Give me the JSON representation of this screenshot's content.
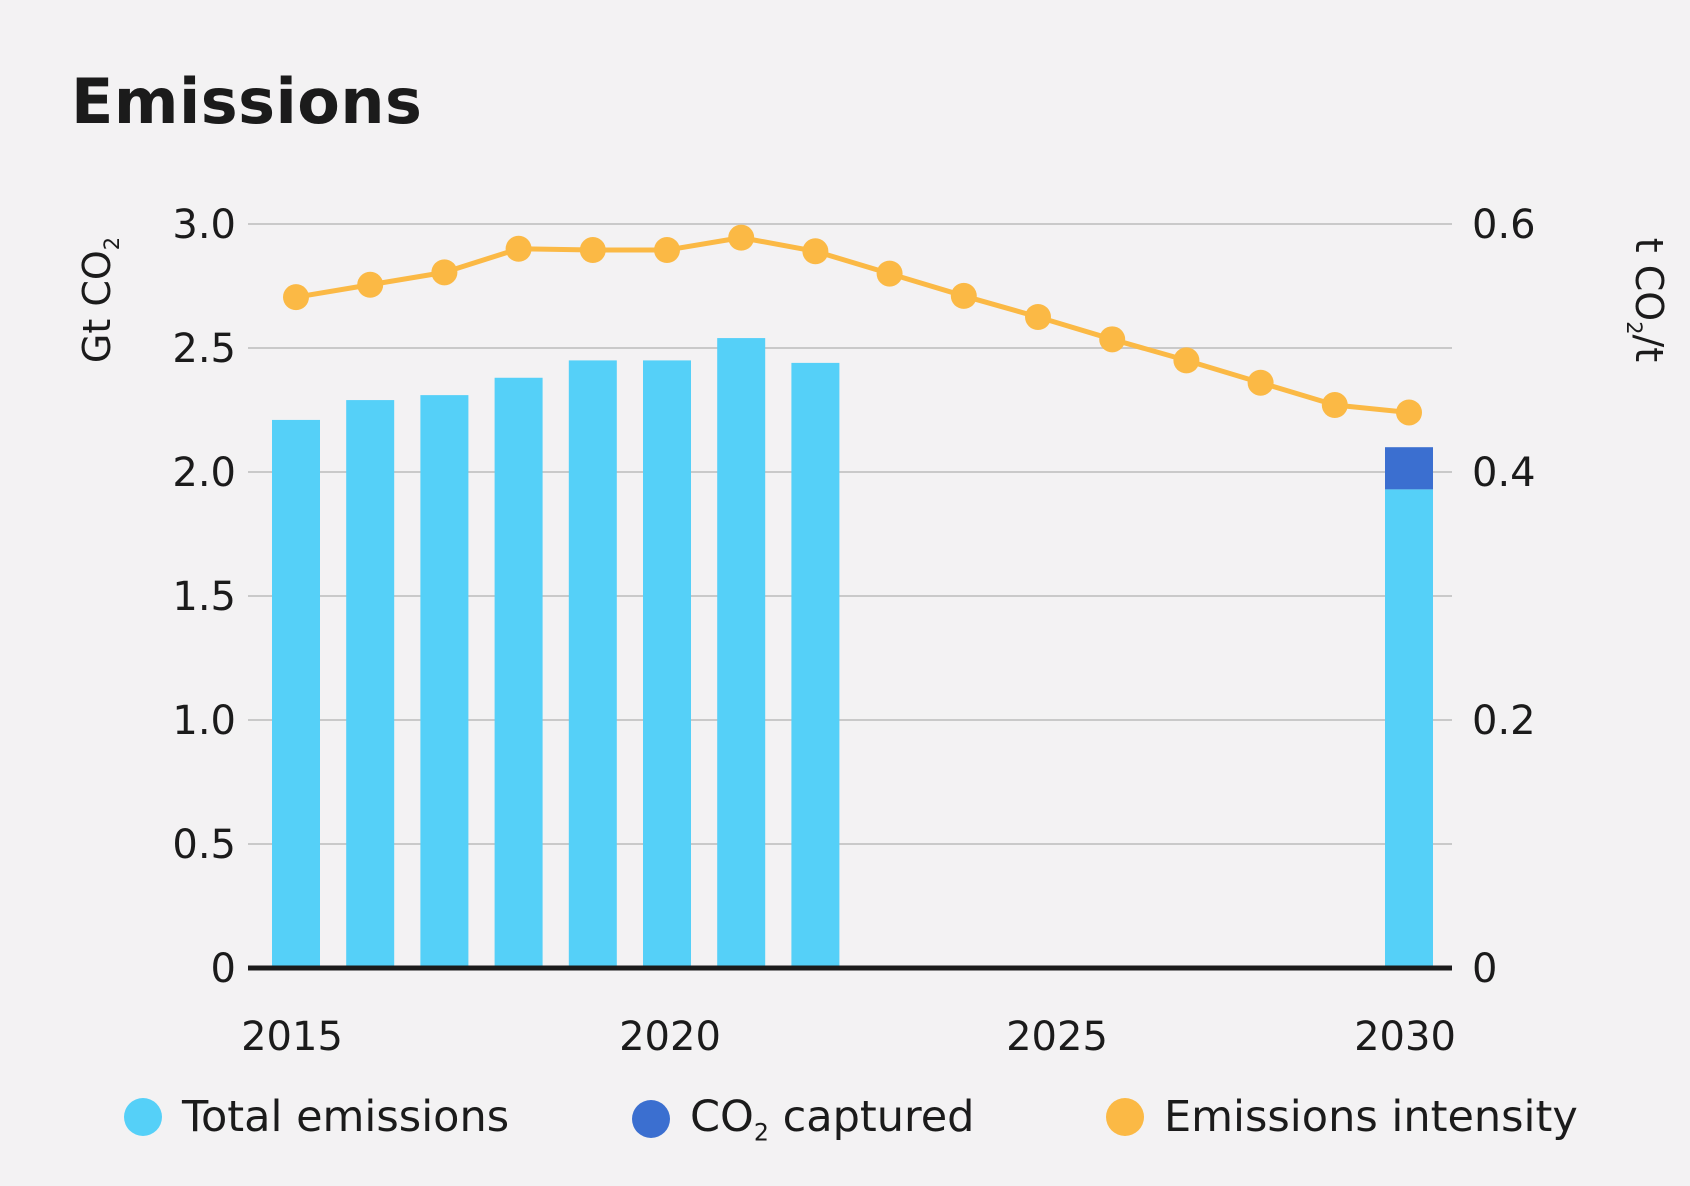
{
  "chart_data": {
    "type": "bar",
    "title": "Emissions",
    "ylabel": "Gt CO2",
    "ylabel_main": "Gt CO",
    "ylabel_sub": "2",
    "y2label": "t CO2/t",
    "y2label_prefix": "t CO",
    "y2label_sub": "2",
    "y2label_suffix": "/t",
    "ylim": [
      0,
      3.0
    ],
    "y2lim": [
      0,
      0.6
    ],
    "yticks": [
      "0",
      "0.5",
      "1.0",
      "1.5",
      "2.0",
      "2.5",
      "3.0"
    ],
    "y2ticks": [
      "0",
      "0.2",
      "0.4",
      "0.6"
    ],
    "xticks": [
      "2015",
      "2020",
      "2025",
      "2030"
    ],
    "grid": true,
    "legend_position": "bottom",
    "series": [
      {
        "name": "Total emissions",
        "type": "bar",
        "axis": "left",
        "color": "#55d0f8",
        "x": [
          2015,
          2016,
          2017,
          2018,
          2019,
          2020,
          2021,
          2022,
          2030
        ],
        "values": [
          2.21,
          2.29,
          2.31,
          2.38,
          2.45,
          2.45,
          2.54,
          2.44,
          1.93
        ]
      },
      {
        "name": "CO2 captured",
        "name_main": "CO",
        "name_sub": "2",
        "name_rest": " captured",
        "type": "bar-stacked",
        "axis": "left",
        "color": "#3b6fd0",
        "x": [
          2030
        ],
        "values": [
          0.17
        ]
      },
      {
        "name": "Emissions intensity",
        "type": "line",
        "axis": "right",
        "color": "#fbb945",
        "x": [
          2015,
          2016,
          2017,
          2018,
          2019,
          2020,
          2021,
          2022,
          2023,
          2024,
          2025,
          2026,
          2027,
          2028,
          2029,
          2030
        ],
        "values": [
          0.541,
          0.551,
          0.561,
          0.58,
          0.579,
          0.579,
          0.589,
          0.578,
          0.56,
          0.542,
          0.525,
          0.507,
          0.49,
          0.472,
          0.454,
          0.448
        ]
      }
    ]
  }
}
